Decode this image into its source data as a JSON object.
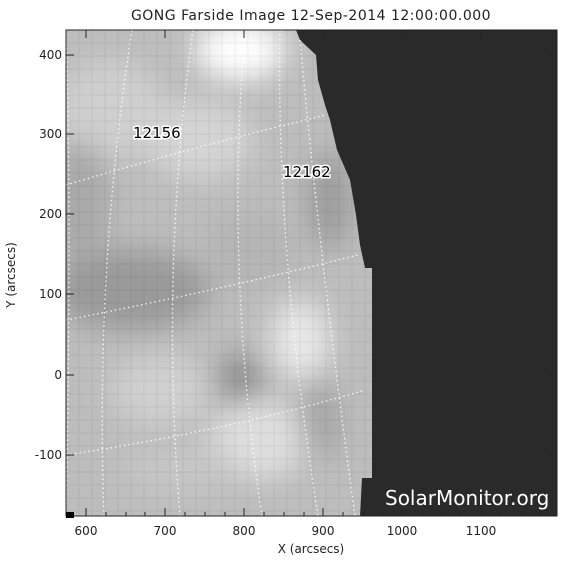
{
  "title": "GONG Farside Image 12-Sep-2014 12:00:00.000",
  "xlabel": "X (arcsecs)",
  "ylabel": "Y (arcsecs)",
  "x_ticks": [
    "600",
    "700",
    "800",
    "900",
    "1000",
    "1100"
  ],
  "y_ticks": [
    "400",
    "300",
    "200",
    "100",
    "0",
    "-100"
  ],
  "regions": [
    {
      "id": "12156",
      "label": "12156"
    },
    {
      "id": "12162",
      "label": "12162"
    }
  ],
  "watermark": "SolarMonitor.org",
  "colors": {
    "background": "#2a2a2a",
    "disk_light": "#d9d9d9",
    "disk_dark": "#8f8f8f",
    "grid": "#ffffff"
  }
}
